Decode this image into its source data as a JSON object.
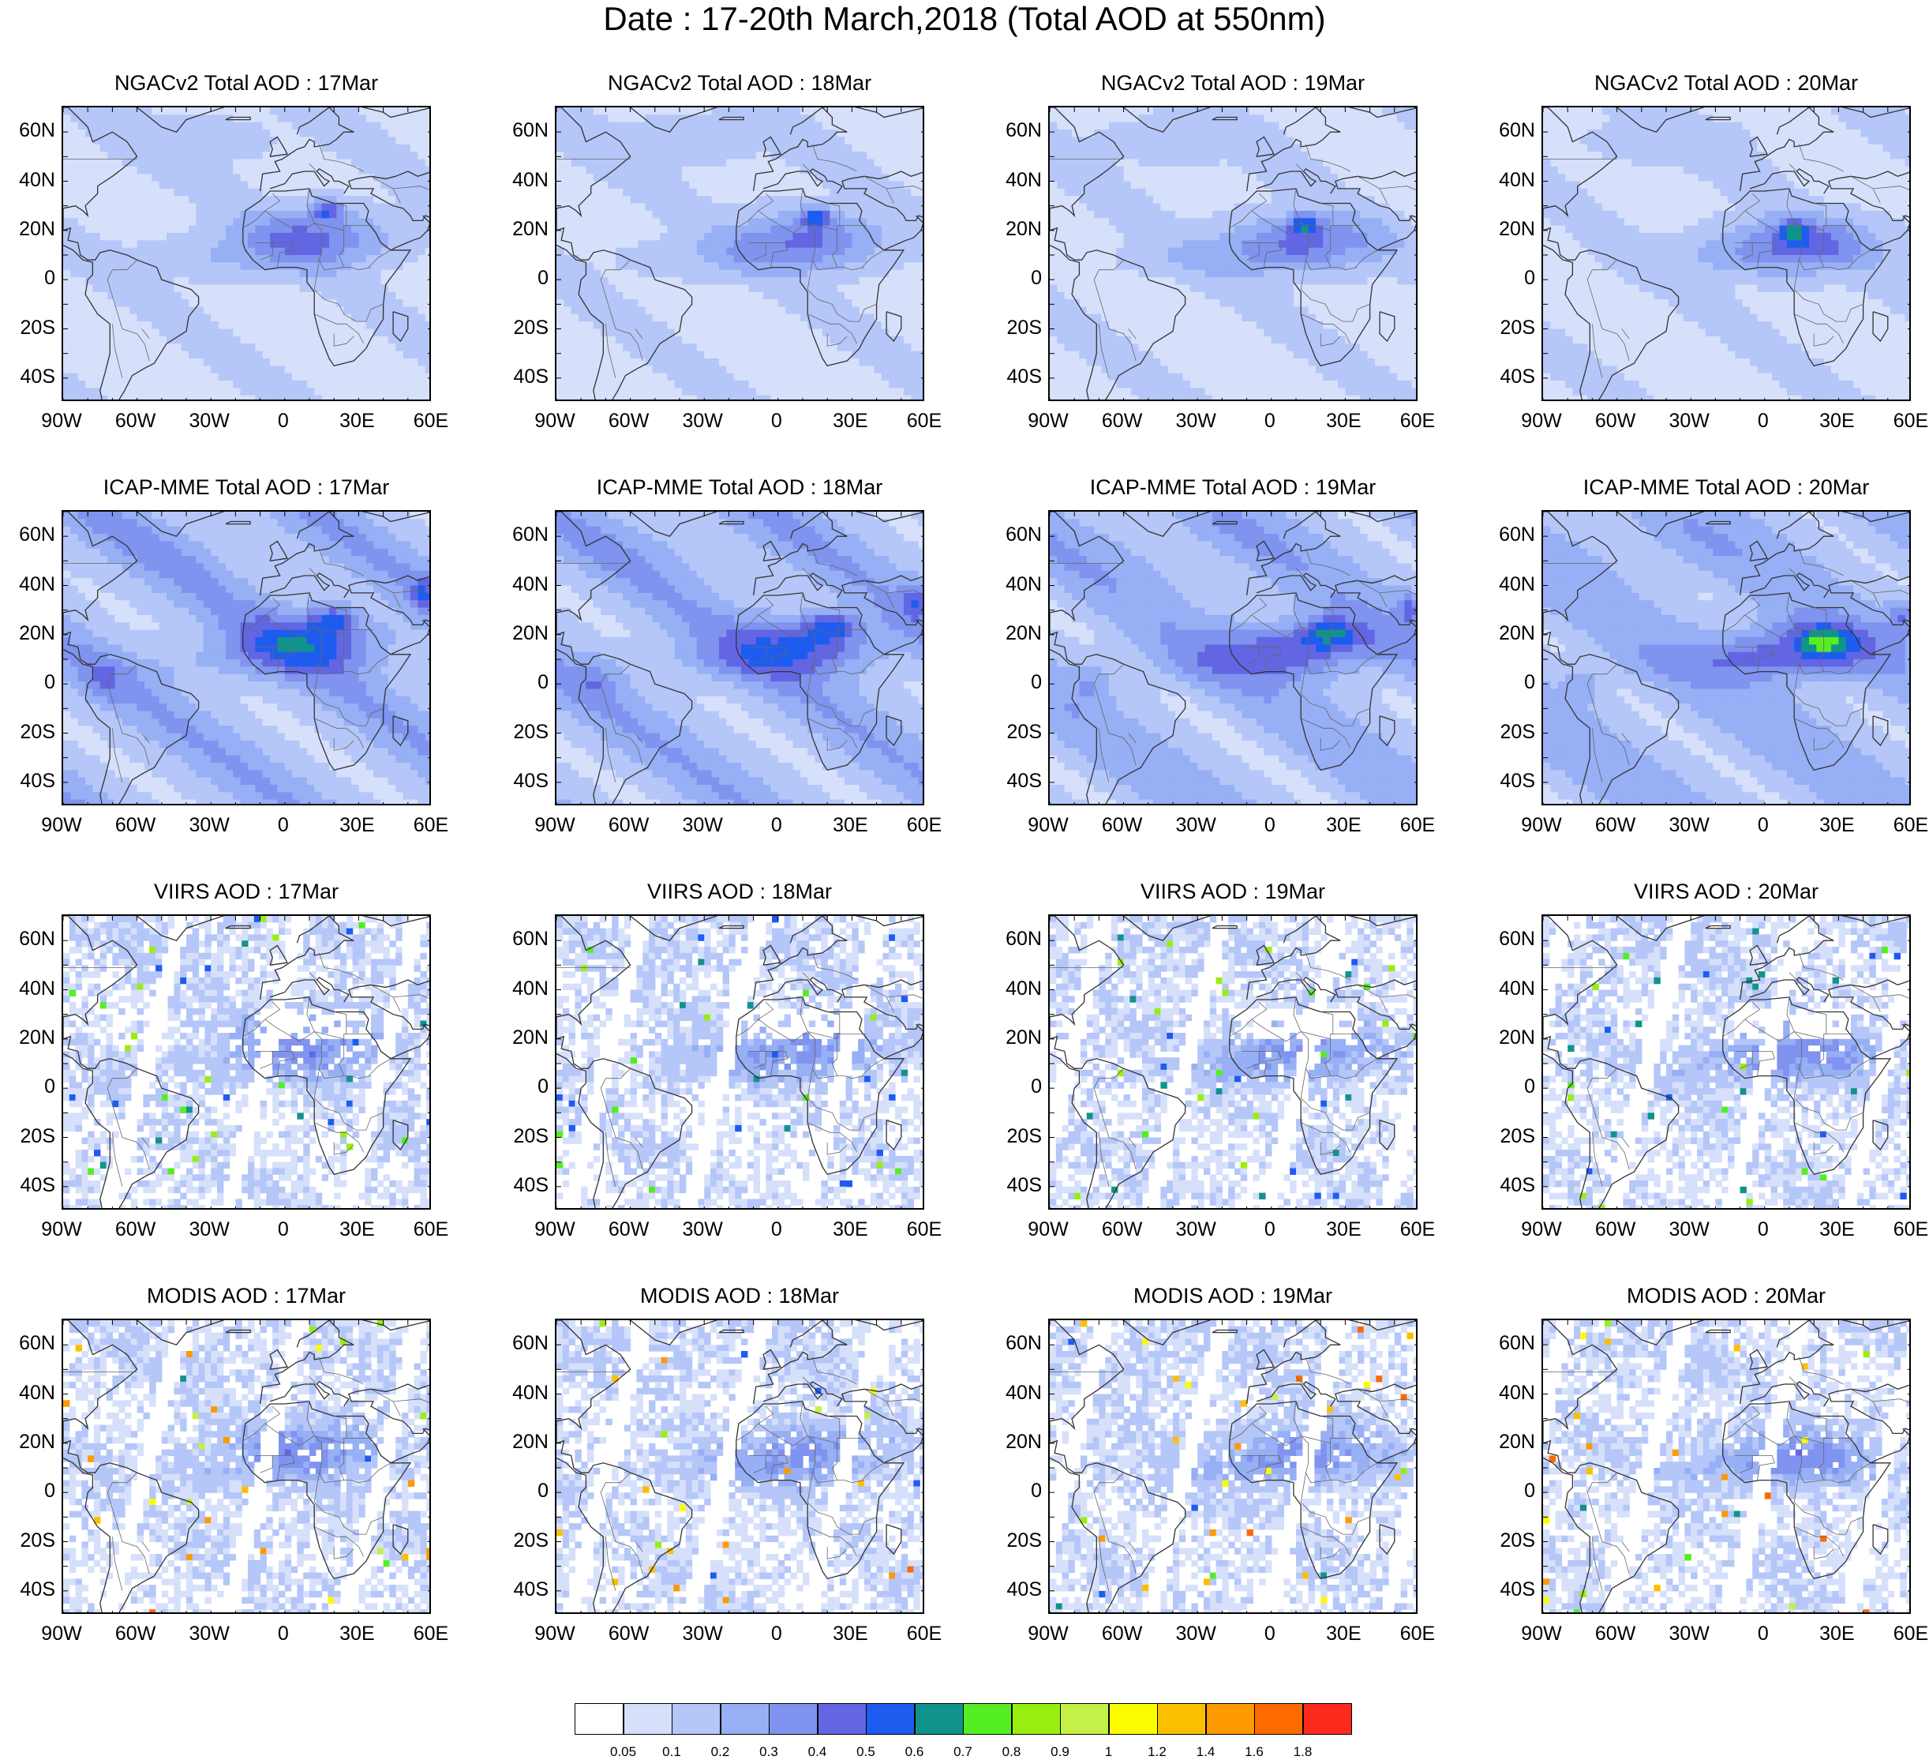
{
  "title": "Date : 17-20th March,2018 (Total AOD at 550nm)",
  "rows": [
    {
      "product": "NGACv2 Total AOD",
      "kind": "model",
      "titles": [
        "NGACv2 Total AOD : 17Mar",
        "NGACv2 Total AOD : 18Mar",
        "NGACv2 Total AOD : 19Mar",
        "NGACv2 Total AOD : 20Mar"
      ]
    },
    {
      "product": "ICAP-MME Total AOD",
      "kind": "model2",
      "titles": [
        "ICAP-MME Total AOD : 17Mar",
        "ICAP-MME Total AOD : 18Mar",
        "ICAP-MME Total AOD : 19Mar",
        "ICAP-MME Total AOD : 20Mar"
      ]
    },
    {
      "product": "VIIRS AOD",
      "kind": "viirs",
      "titles": [
        "VIIRS AOD : 17Mar",
        "VIIRS AOD : 18Mar",
        "VIIRS AOD : 19Mar",
        "VIIRS AOD : 20Mar"
      ]
    },
    {
      "product": "MODIS AOD",
      "kind": "modis",
      "titles": [
        "MODIS AOD : 17Mar",
        "MODIS AOD : 18Mar",
        "MODIS AOD : 19Mar",
        "MODIS AOD : 20Mar"
      ]
    }
  ],
  "axes": {
    "lat_labels": [
      "60N",
      "40N",
      "20N",
      "0",
      "20S",
      "40S"
    ],
    "lon_labels": [
      "90W",
      "60W",
      "30W",
      "0",
      "30E",
      "60E"
    ],
    "lat_range": [
      -50,
      70
    ],
    "lon_range": [
      -90,
      60
    ]
  },
  "colorbar": {
    "colors": [
      "#ffffff",
      "#d6e0fb",
      "#b5c6f8",
      "#96aff5",
      "#7f93ef",
      "#6366e3",
      "#1e5cf0",
      "#11938d",
      "#55ee22",
      "#99ee11",
      "#c5f048",
      "#fcfc00",
      "#fac000",
      "#fc9a00",
      "#fc6a00",
      "#fc2a1c"
    ],
    "labels": [
      "0.05",
      "0.1",
      "0.2",
      "0.3",
      "0.4",
      "0.5",
      "0.6",
      "0.7",
      "0.8",
      "0.9",
      "1",
      "1.2",
      "1.4",
      "1.6",
      "1.8"
    ]
  }
}
